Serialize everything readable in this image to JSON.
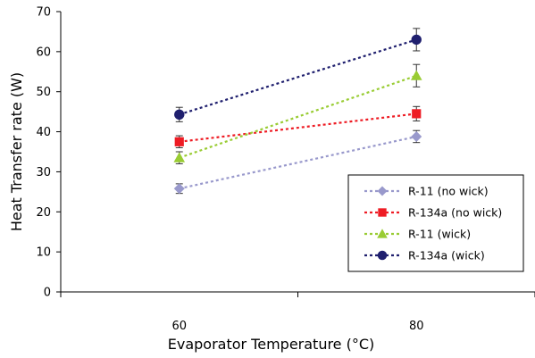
{
  "chart_data": {
    "type": "line",
    "title": "",
    "xlabel": "Evaporator Temperature (°C)",
    "ylabel": "Heat Transfer rate (W)",
    "x": [
      60,
      80
    ],
    "x_ticks": [
      "60",
      "80"
    ],
    "xlim": [
      50,
      90
    ],
    "ylim": [
      0,
      70
    ],
    "y_ticks": [
      "0",
      "10",
      "20",
      "30",
      "40",
      "50",
      "60",
      "70"
    ],
    "grid": false,
    "legend_position": "bottom-right",
    "series": [
      {
        "name": "R-11 (no wick)",
        "values": [
          25.8,
          38.8
        ],
        "errors": [
          1.2,
          1.5
        ],
        "color": "#9999cc",
        "marker": "diamond",
        "line_style": "dotted"
      },
      {
        "name": "R-134a (no wick)",
        "values": [
          37.5,
          44.5
        ],
        "errors": [
          1.5,
          1.8
        ],
        "color": "#ee1c24",
        "marker": "square",
        "line_style": "dotted"
      },
      {
        "name": "R-11 (wick)",
        "values": [
          33.5,
          54.0
        ],
        "errors": [
          1.5,
          2.8
        ],
        "color": "#99cc33",
        "marker": "triangle",
        "line_style": "dotted"
      },
      {
        "name": "R-134a (wick)",
        "values": [
          44.3,
          63.0
        ],
        "errors": [
          1.8,
          2.8
        ],
        "color": "#1f1f6e",
        "marker": "circle",
        "line_style": "dotted"
      }
    ]
  }
}
